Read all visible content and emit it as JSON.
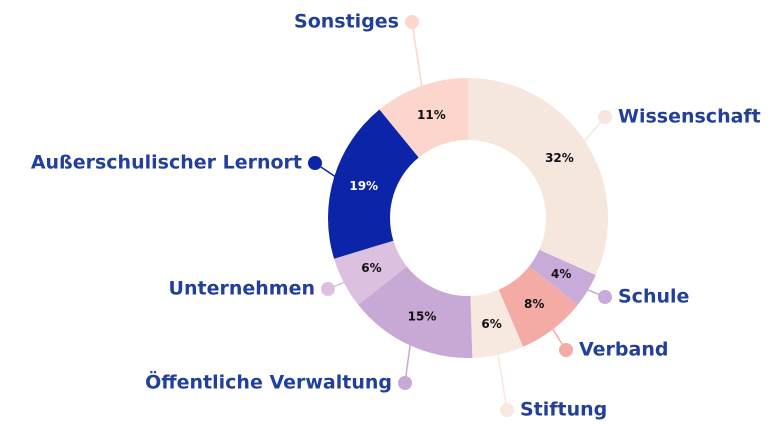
{
  "chart_data": {
    "type": "donut",
    "categories": [
      "Wissenschaft",
      "Schule",
      "Verband",
      "Stiftung",
      "Öffentliche Verwaltung",
      "Unternehmen",
      "Außerschulischer Lernort",
      "Sonstiges"
    ],
    "values": [
      32,
      4,
      8,
      6,
      15,
      6,
      19,
      11
    ],
    "value_labels": [
      "32%",
      "4%",
      "8%",
      "6%",
      "15%",
      "6%",
      "19%",
      "11%"
    ],
    "colors": [
      "#f5e6de",
      "#c9abd9",
      "#f4aaa5",
      "#f7e8e0",
      "#c8a9d6",
      "#dcc0e0",
      "#0b24a8",
      "#fcd5cc"
    ]
  }
}
